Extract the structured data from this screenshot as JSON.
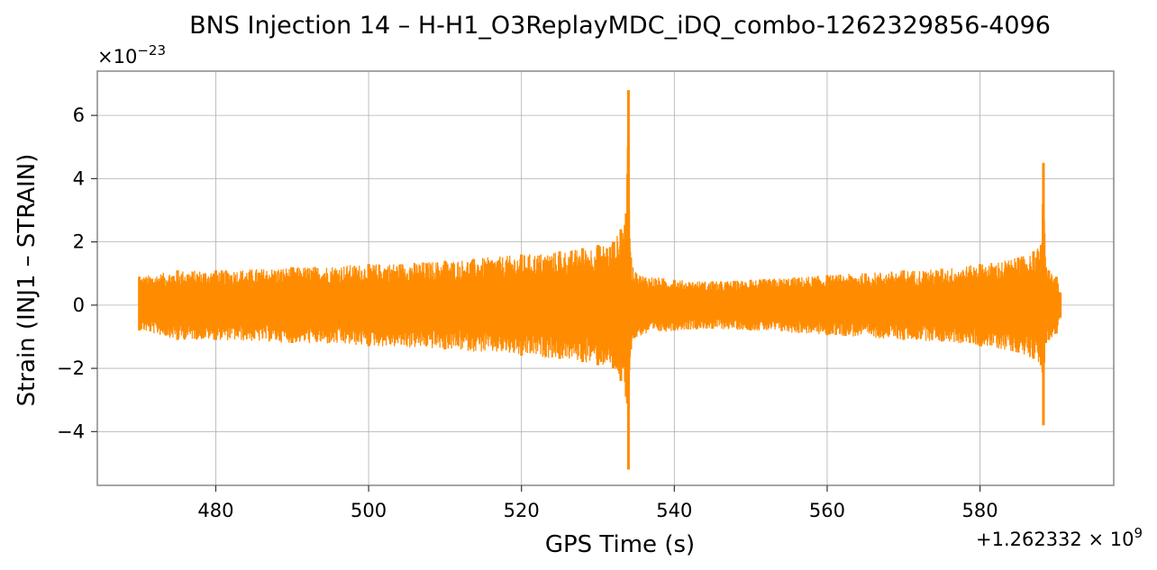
{
  "chart_data": {
    "type": "line",
    "title": "BNS Injection 14 – H-H1_O3ReplayMDC_iDQ_combo-1262329856-4096",
    "xlabel": "GPS Time (s)",
    "ylabel": "Strain (INJ1 – STRAIN)",
    "y_scale_label": "×10",
    "y_scale_exponent": "−23",
    "x_offset_prefix": "+1.262332 × 10",
    "x_offset_exponent": "9",
    "xlim": [
      464.5,
      597.5
    ],
    "ylim": [
      -5.7,
      7.4
    ],
    "x_ticks": [
      480,
      500,
      520,
      540,
      560,
      580
    ],
    "x_tick_labels": [
      "480",
      "500",
      "520",
      "540",
      "560",
      "580"
    ],
    "y_ticks": [
      -4,
      -2,
      0,
      2,
      4,
      6
    ],
    "y_tick_labels": [
      "−4",
      "−2",
      "0",
      "2",
      "4",
      "6"
    ],
    "grid": true,
    "series": [
      {
        "color": "#ff8c00",
        "envelope": {
          "x": [
            470,
            475,
            480,
            490,
            500,
            510,
            520,
            525,
            528,
            530,
            532,
            533,
            533.7,
            534.0,
            534.3,
            535,
            540,
            545,
            550,
            560,
            570,
            575,
            580,
            585,
            587,
            588.0,
            588.3,
            588.6,
            589,
            590,
            590.5
          ],
          "upper": [
            0.9,
            1.1,
            1.1,
            1.2,
            1.3,
            1.4,
            1.6,
            1.7,
            1.8,
            1.9,
            2.0,
            2.4,
            2.9,
            6.8,
            1.5,
            1.0,
            0.8,
            0.75,
            0.8,
            0.95,
            1.1,
            1.15,
            1.3,
            1.5,
            1.7,
            1.9,
            4.5,
            1.2,
            1.1,
            0.9,
            0.4
          ],
          "lower": [
            -0.8,
            -1.1,
            -1.1,
            -1.2,
            -1.3,
            -1.4,
            -1.6,
            -1.7,
            -1.8,
            -1.9,
            -2.0,
            -2.4,
            -2.9,
            -5.2,
            -1.4,
            -1.0,
            -0.8,
            -0.75,
            -0.8,
            -0.95,
            -1.1,
            -1.15,
            -1.3,
            -1.5,
            -1.7,
            -1.9,
            -3.8,
            -1.2,
            -1.1,
            -0.9,
            -0.4
          ]
        }
      }
    ]
  }
}
